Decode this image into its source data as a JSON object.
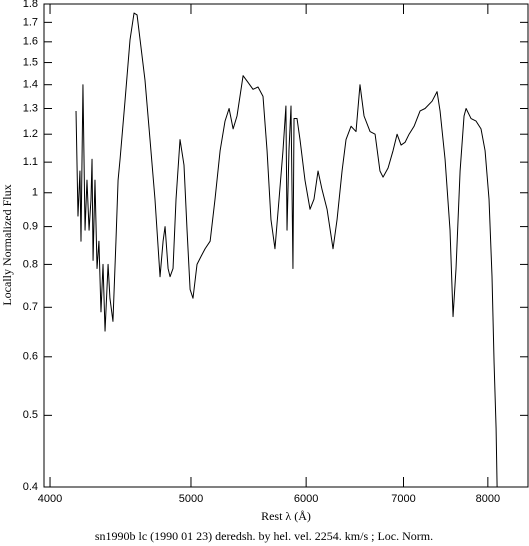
{
  "chart_data": {
    "type": "line",
    "xlabel": "Rest λ (Å)",
    "ylabel": "Locally Normalized Flux",
    "caption": "sn1990b lc (1990 01 23) deredsh. by hel. vel.  2254. km/s ;  Loc. Norm.",
    "color": "#000000",
    "xlog": true,
    "ylog": true,
    "grid": false,
    "xlim": [
      3962,
      8525
    ],
    "ylim": [
      0.4,
      1.8
    ],
    "xticks": [
      4000,
      5000,
      6000,
      7000,
      8000
    ],
    "yticks": [
      0.4,
      0.5,
      0.6,
      0.7,
      0.8,
      0.9,
      1,
      1.1,
      1.2,
      1.3,
      1.4,
      1.5,
      1.6,
      1.7,
      1.8
    ],
    "x": [
      4168,
      4181,
      4194,
      4201,
      4214,
      4228,
      4241,
      4255,
      4268,
      4275,
      4282,
      4295,
      4309,
      4322,
      4336,
      4350,
      4364,
      4385,
      4398,
      4419,
      4440,
      4455,
      4469,
      4504,
      4540,
      4569,
      4591,
      4613,
      4649,
      4686,
      4723,
      4761,
      4784,
      4799,
      4822,
      4837,
      4860,
      4883,
      4914,
      4945,
      4969,
      4993,
      5016,
      5048,
      5080,
      5113,
      5154,
      5194,
      5236,
      5277,
      5311,
      5345,
      5378,
      5430,
      5473,
      5516,
      5560,
      5604,
      5640,
      5675,
      5711,
      5748,
      5784,
      5811,
      5821,
      5839,
      5858,
      5876,
      5886,
      5914,
      5942,
      5989,
      6037,
      6075,
      6114,
      6153,
      6202,
      6261,
      6301,
      6351,
      6391,
      6442,
      6493,
      6534,
      6576,
      6639,
      6692,
      6744,
      6777,
      6831,
      6885,
      6929,
      6973,
      7017,
      7062,
      7118,
      7186,
      7243,
      7324,
      7382,
      7417,
      7476,
      7535,
      7571,
      7607,
      7656,
      7704,
      7729,
      7790,
      7852,
      7914,
      7965,
      8015,
      8053,
      8079,
      8105,
      8118
    ],
    "values": [
      1.29,
      0.93,
      1.07,
      0.86,
      1.4,
      0.89,
      1.04,
      0.89,
      0.98,
      1.11,
      0.81,
      1.04,
      0.79,
      0.86,
      0.69,
      0.8,
      0.65,
      0.8,
      0.72,
      0.67,
      0.86,
      1.04,
      1.11,
      1.33,
      1.61,
      1.75,
      1.74,
      1.61,
      1.42,
      1.18,
      0.98,
      0.77,
      0.86,
      0.9,
      0.79,
      0.77,
      0.79,
      0.98,
      1.18,
      1.09,
      0.89,
      0.74,
      0.72,
      0.8,
      0.82,
      0.84,
      0.86,
      0.98,
      1.14,
      1.25,
      1.3,
      1.22,
      1.27,
      1.44,
      1.41,
      1.38,
      1.39,
      1.35,
      1.14,
      0.92,
      0.84,
      0.98,
      1.14,
      1.31,
      0.89,
      1.14,
      1.31,
      0.79,
      1.26,
      1.26,
      1.18,
      1.04,
      0.95,
      0.98,
      1.07,
      1.01,
      0.95,
      0.84,
      0.92,
      1.07,
      1.18,
      1.23,
      1.21,
      1.4,
      1.27,
      1.21,
      1.2,
      1.07,
      1.05,
      1.08,
      1.14,
      1.2,
      1.16,
      1.17,
      1.2,
      1.23,
      1.29,
      1.3,
      1.33,
      1.37,
      1.29,
      1.11,
      0.89,
      0.68,
      0.79,
      1.07,
      1.27,
      1.3,
      1.26,
      1.25,
      1.22,
      1.14,
      0.98,
      0.77,
      0.59,
      0.48,
      0.4
    ]
  }
}
